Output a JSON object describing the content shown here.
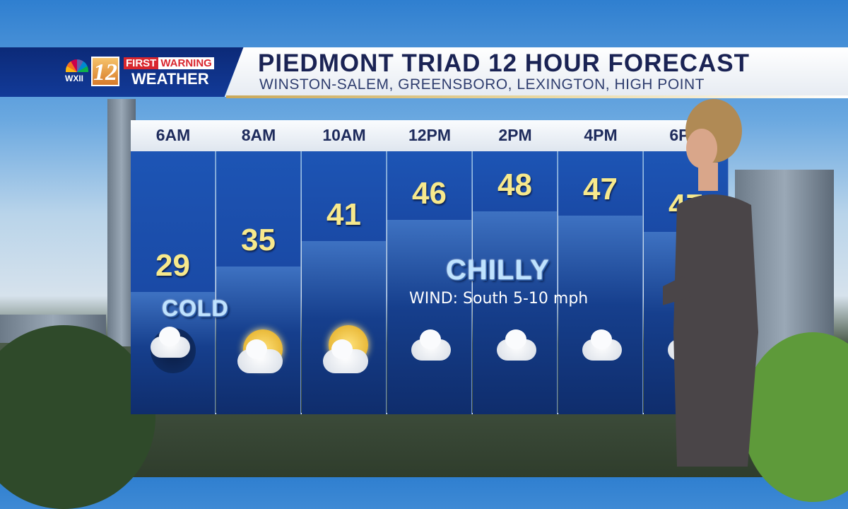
{
  "branding": {
    "network": "WXII",
    "channel": "12",
    "first": "FIRST",
    "warning": "WARNING",
    "weather": "WEATHER"
  },
  "header": {
    "title": "PIEDMONT TRIAD 12 HOUR FORECAST",
    "subtitle": "WINSTON-SALEM, GREENSBORO, LEXINGTON, HIGH POINT"
  },
  "forecast": [
    {
      "time": "6AM",
      "temp": "29",
      "icon": "night-cloud-icon"
    },
    {
      "time": "8AM",
      "temp": "35",
      "icon": "partly-sunny-icon"
    },
    {
      "time": "10AM",
      "temp": "41",
      "icon": "mostly-cloudy-icon"
    },
    {
      "time": "12PM",
      "temp": "46",
      "icon": "cloudy-icon"
    },
    {
      "time": "2PM",
      "temp": "48",
      "icon": "cloudy-icon"
    },
    {
      "time": "4PM",
      "temp": "47",
      "icon": "cloudy-icon"
    },
    {
      "time": "6PM",
      "temp": "47",
      "icon": "cloudy-icon"
    }
  ],
  "notes": {
    "cold": "COLD",
    "chilly": "CHILLY",
    "wind": "WIND: South 5-10 mph"
  },
  "colors": {
    "temp": "#f7e98c",
    "panel": "#1a4aa6",
    "title": "#1a2354",
    "warning_red": "#d9262e"
  }
}
